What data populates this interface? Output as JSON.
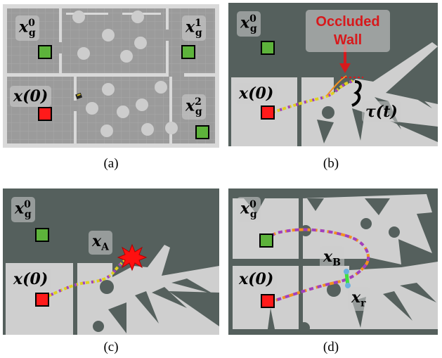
{
  "panels": {
    "a": {
      "caption": "(a)",
      "labels": {
        "start": "x(0)",
        "goal0": "x",
        "goal0_sup": "0",
        "goal0_sub": "g",
        "goal1_sup": "1",
        "goal2_sup": "2"
      }
    },
    "b": {
      "caption": "(b)",
      "occluded_wall": "Occluded Wall",
      "tau": "τ(t)"
    },
    "c": {
      "caption": "(c)",
      "xa": "x",
      "xa_sub": "A"
    },
    "d": {
      "caption": "(d)",
      "xb": "x",
      "xb_sub": "B",
      "xr": "x",
      "xr_sub": "r"
    }
  },
  "common": {
    "start": "x(0)",
    "x": "x",
    "g": "g",
    "zero": "0"
  },
  "colors": {
    "background": "#55605d",
    "floor": "#cfcfcf",
    "goal": "#5db33b",
    "start": "#ff1a1a",
    "occluded_text": "#d7191c"
  }
}
